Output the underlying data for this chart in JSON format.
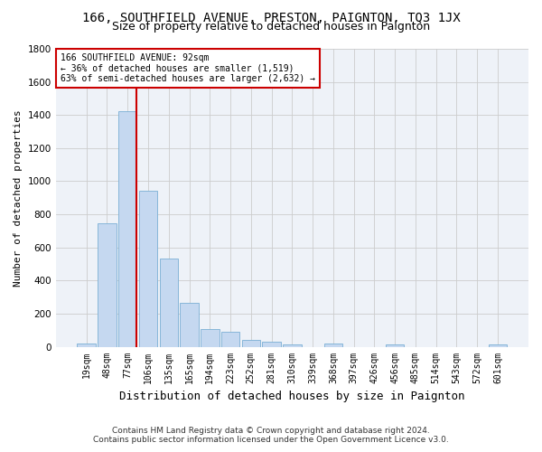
{
  "title": "166, SOUTHFIELD AVENUE, PRESTON, PAIGNTON, TQ3 1JX",
  "subtitle": "Size of property relative to detached houses in Paignton",
  "xlabel": "Distribution of detached houses by size in Paignton",
  "ylabel": "Number of detached properties",
  "footer_line1": "Contains HM Land Registry data © Crown copyright and database right 2024.",
  "footer_line2": "Contains public sector information licensed under the Open Government Licence v3.0.",
  "bar_labels": [
    "19sqm",
    "48sqm",
    "77sqm",
    "106sqm",
    "135sqm",
    "165sqm",
    "194sqm",
    "223sqm",
    "252sqm",
    "281sqm",
    "310sqm",
    "339sqm",
    "368sqm",
    "397sqm",
    "426sqm",
    "456sqm",
    "485sqm",
    "514sqm",
    "543sqm",
    "572sqm",
    "601sqm"
  ],
  "bar_values": [
    22,
    745,
    1425,
    940,
    535,
    265,
    105,
    92,
    42,
    28,
    14,
    0,
    18,
    0,
    0,
    14,
    0,
    0,
    0,
    0,
    14
  ],
  "bar_color": "#c5d8f0",
  "bar_edgecolor": "#7aafd4",
  "annotation_line1": "166 SOUTHFIELD AVENUE: 92sqm",
  "annotation_line2": "← 36% of detached houses are smaller (1,519)",
  "annotation_line3": "63% of semi-detached houses are larger (2,632) →",
  "annotation_box_color": "#ffffff",
  "annotation_box_edgecolor": "#cc0000",
  "red_line_color": "#cc0000",
  "red_line_bar_index": 2,
  "ylim": [
    0,
    1800
  ],
  "yticks": [
    0,
    200,
    400,
    600,
    800,
    1000,
    1200,
    1400,
    1600,
    1800
  ],
  "grid_color": "#cccccc",
  "background_color": "#ffffff",
  "axes_background": "#eef2f8",
  "title_fontsize": 10,
  "subtitle_fontsize": 9,
  "ylabel_fontsize": 8,
  "xlabel_fontsize": 9,
  "tick_fontsize": 7,
  "annotation_fontsize": 7,
  "footer_fontsize": 6.5
}
